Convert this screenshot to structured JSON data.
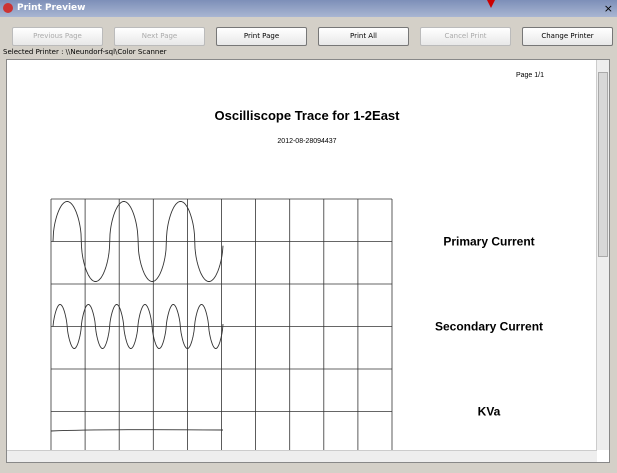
{
  "window": {
    "title": "Print Preview",
    "close": "×"
  },
  "toolbar": {
    "buttons": [
      {
        "label": "Previous Page",
        "disabled": true
      },
      {
        "label": "Next Page",
        "disabled": true
      },
      {
        "label": "Print Page",
        "disabled": false
      },
      {
        "label": "Print All",
        "disabled": false
      },
      {
        "label": "Cancel Print",
        "disabled": true
      },
      {
        "label": "Change Printer",
        "disabled": false
      }
    ]
  },
  "printer": "Selected Printer : \\\\Neundorf-sql\\Color Scanner",
  "page": {
    "page_number": "Page 1/1",
    "title": "Oscilliscope Trace for 1-2East",
    "date": "2012-08-28094437",
    "channels": [
      "Primary Current",
      "Secondary Current",
      "KVa"
    ]
  }
}
